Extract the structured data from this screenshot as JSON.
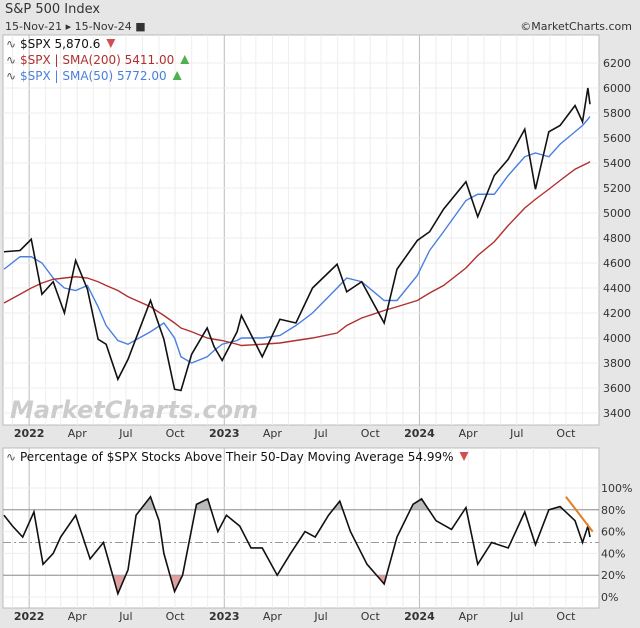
{
  "header": {
    "title": "S&P 500 Index",
    "range_start": "15-Nov-21",
    "range_end": "15-Nov-24",
    "credit": "©MarketCharts.com"
  },
  "watermark": "MarketCharts.com",
  "colors": {
    "price": "#111111",
    "sma200": "#b03030",
    "sma50": "#4a7fe0",
    "trend": "#e08020",
    "down": "#d05050",
    "up": "#50b050"
  },
  "chart_data": [
    {
      "type": "line",
      "legend": [
        {
          "label": "$SPX 5,870.6",
          "arrow": "down"
        },
        {
          "label": "$SPX | SMA(200) 5411.00",
          "arrow": "up"
        },
        {
          "label": "$SPX | SMA(50) 5772.00",
          "arrow": "up"
        }
      ],
      "ylim": [
        3300,
        6300
      ],
      "yticks": [
        3400,
        3600,
        3800,
        4000,
        4200,
        4400,
        4600,
        4800,
        5000,
        5200,
        5400,
        5600,
        5800,
        6000,
        6200
      ],
      "xticks": [
        "2022",
        "Apr",
        "Jul",
        "Oct",
        "2023",
        "Apr",
        "Jul",
        "Oct",
        "2024",
        "Apr",
        "Jul",
        "Oct"
      ],
      "xtick_dates": [
        "2022-01-01",
        "2022-04-01",
        "2022-07-01",
        "2022-10-01",
        "2023-01-01",
        "2023-04-01",
        "2023-07-01",
        "2023-10-01",
        "2024-01-01",
        "2024-04-01",
        "2024-07-01",
        "2024-10-01"
      ],
      "xlim": [
        "2021-11-15",
        "2024-11-15"
      ],
      "dates": [
        "2021-11-15",
        "2021-12-15",
        "2022-01-05",
        "2022-01-25",
        "2022-02-15",
        "2022-03-08",
        "2022-03-29",
        "2022-04-20",
        "2022-05-10",
        "2022-05-25",
        "2022-06-16",
        "2022-07-05",
        "2022-08-16",
        "2022-09-10",
        "2022-09-30",
        "2022-10-12",
        "2022-11-01",
        "2022-11-30",
        "2022-12-13",
        "2022-12-28",
        "2023-01-25",
        "2023-02-02",
        "2023-03-13",
        "2023-04-15",
        "2023-05-15",
        "2023-06-15",
        "2023-07-31",
        "2023-08-18",
        "2023-09-15",
        "2023-10-27",
        "2023-11-20",
        "2023-12-28",
        "2024-01-20",
        "2024-02-15",
        "2024-03-28",
        "2024-04-19",
        "2024-05-20",
        "2024-06-15",
        "2024-07-16",
        "2024-08-05",
        "2024-08-30",
        "2024-09-20",
        "2024-10-18",
        "2024-11-01",
        "2024-11-11",
        "2024-11-15"
      ],
      "series": [
        {
          "name": "$SPX",
          "values": [
            4690,
            4700,
            4790,
            4350,
            4450,
            4200,
            4620,
            4390,
            3990,
            3950,
            3670,
            3830,
            4300,
            3990,
            3590,
            3580,
            3870,
            4080,
            3930,
            3820,
            4050,
            4180,
            3850,
            4150,
            4120,
            4400,
            4590,
            4370,
            4450,
            4120,
            4550,
            4780,
            4850,
            5030,
            5250,
            4970,
            5300,
            5430,
            5670,
            5190,
            5650,
            5700,
            5860,
            5730,
            6000,
            5870
          ]
        },
        {
          "name": "$SPX | SMA(200)",
          "values": [
            4280,
            4350,
            4400,
            4440,
            4470,
            4480,
            4490,
            4480,
            4450,
            4420,
            4380,
            4330,
            4250,
            4180,
            4120,
            4080,
            4050,
            4000,
            3990,
            3980,
            3950,
            3940,
            3950,
            3960,
            3980,
            4000,
            4040,
            4100,
            4160,
            4220,
            4250,
            4300,
            4360,
            4420,
            4560,
            4660,
            4770,
            4900,
            5040,
            5110,
            5190,
            5260,
            5350,
            5380,
            5400,
            5411
          ]
        },
        {
          "name": "$SPX | SMA(50)",
          "values": [
            4550,
            4650,
            4650,
            4600,
            4480,
            4400,
            4380,
            4420,
            4250,
            4100,
            3980,
            3950,
            4050,
            4120,
            4000,
            3850,
            3800,
            3850,
            3900,
            3950,
            3980,
            4000,
            4000,
            4020,
            4100,
            4200,
            4400,
            4480,
            4450,
            4300,
            4300,
            4500,
            4700,
            4850,
            5100,
            5150,
            5150,
            5300,
            5450,
            5480,
            5450,
            5550,
            5650,
            5700,
            5750,
            5772
          ]
        }
      ]
    },
    {
      "type": "line",
      "legend": [
        {
          "label": "Percentage of $SPX Stocks Above Their 50-Day Moving Average 54.99%",
          "arrow": "down"
        }
      ],
      "ylim": [
        -10,
        115
      ],
      "yticks": [
        0,
        20,
        40,
        60,
        80,
        100
      ],
      "ytick_labels": [
        "0%",
        "20%",
        "40%",
        "60%",
        "80%",
        "100%"
      ],
      "reference_lines": [
        20,
        50,
        80
      ],
      "dates": [
        "2021-11-15",
        "2021-12-01",
        "2021-12-20",
        "2022-01-10",
        "2022-01-27",
        "2022-02-15",
        "2022-03-01",
        "2022-03-29",
        "2022-04-25",
        "2022-05-20",
        "2022-06-16",
        "2022-07-05",
        "2022-07-20",
        "2022-08-16",
        "2022-09-01",
        "2022-09-10",
        "2022-09-30",
        "2022-10-15",
        "2022-11-10",
        "2022-12-01",
        "2022-12-20",
        "2023-01-05",
        "2023-01-30",
        "2023-02-20",
        "2023-03-13",
        "2023-04-10",
        "2023-05-05",
        "2023-06-01",
        "2023-06-20",
        "2023-07-15",
        "2023-08-05",
        "2023-08-25",
        "2023-09-25",
        "2023-10-27",
        "2023-11-20",
        "2023-12-20",
        "2024-01-05",
        "2024-02-01",
        "2024-03-01",
        "2024-03-28",
        "2024-04-19",
        "2024-05-15",
        "2024-06-15",
        "2024-07-16",
        "2024-08-05",
        "2024-08-30",
        "2024-09-20",
        "2024-10-18",
        "2024-11-01",
        "2024-11-11",
        "2024-11-15"
      ],
      "values": [
        75,
        65,
        55,
        78,
        30,
        40,
        55,
        75,
        35,
        50,
        3,
        25,
        75,
        92,
        70,
        40,
        5,
        20,
        85,
        90,
        60,
        75,
        65,
        45,
        45,
        20,
        40,
        60,
        55,
        75,
        88,
        60,
        30,
        12,
        55,
        85,
        90,
        70,
        62,
        82,
        30,
        50,
        45,
        78,
        48,
        80,
        83,
        70,
        50,
        65,
        55
      ],
      "trendline": {
        "from": [
          "2024-10-01",
          92
        ],
        "to": [
          "2024-11-20",
          60
        ]
      }
    }
  ]
}
